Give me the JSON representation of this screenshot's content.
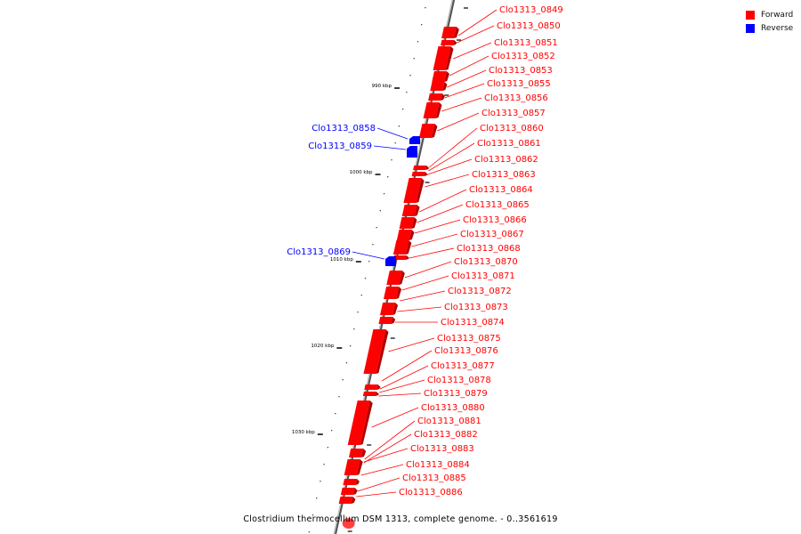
{
  "title": "Clostridium thermocellum DSM 1313, complete genome. - 0..3561619",
  "legend": [
    {
      "label": "Forward",
      "color": "#ff0000"
    },
    {
      "label": "Reverse",
      "color": "#0000ff"
    }
  ],
  "ticks": [
    "990 kbp",
    "1000 kbp",
    "1010 kbp",
    "1020 kbp",
    "1030 kbp"
  ],
  "reverse_genes": [
    "Clo1313_0858",
    "Clo1313_0859",
    "Clo1313_0869"
  ],
  "forward_genes": [
    "Clo1313_0849",
    "Clo1313_0850",
    "Clo1313_0851",
    "Clo1313_0852",
    "Clo1313_0853",
    "Clo1313_0855",
    "Clo1313_0856",
    "Clo1313_0857",
    "Clo1313_0860",
    "Clo1313_0861",
    "Clo1313_0862",
    "Clo1313_0863",
    "Clo1313_0864",
    "Clo1313_0865",
    "Clo1313_0866",
    "Clo1313_0867",
    "Clo1313_0868",
    "Clo1313_0870",
    "Clo1313_0871",
    "Clo1313_0872",
    "Clo1313_0873",
    "Clo1313_0874",
    "Clo1313_0875",
    "Clo1313_0876",
    "Clo1313_0877",
    "Clo1313_0878",
    "Clo1313_0879",
    "Clo1313_0880",
    "Clo1313_0881",
    "Clo1313_0882",
    "Clo1313_0883",
    "Clo1313_0884",
    "Clo1313_0885",
    "Clo1313_0886"
  ],
  "colors": {
    "forward": "#ff0000",
    "reverse": "#0000ff",
    "backbone": "#808080"
  }
}
